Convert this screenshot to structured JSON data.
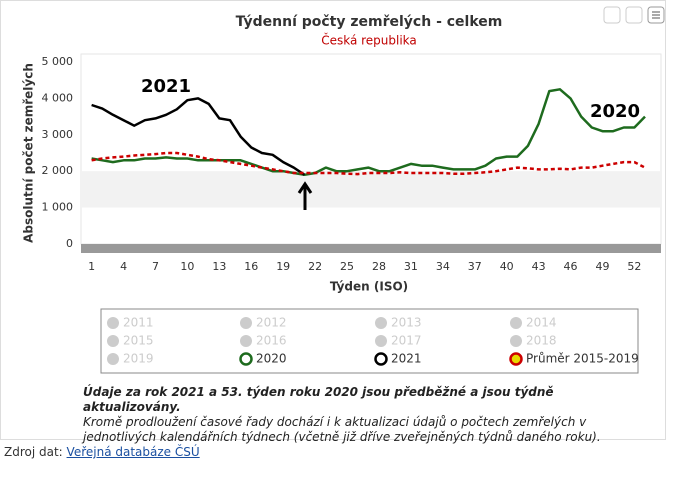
{
  "chart_data": {
    "type": "line",
    "title": "Týdenní počty zemřelých - celkem",
    "subtitle": "Česká republika",
    "x_label": "Týden (ISO)",
    "y_label": "Absolutní počet zemřelých",
    "x": [
      1,
      2,
      3,
      4,
      5,
      6,
      7,
      8,
      9,
      10,
      11,
      12,
      13,
      14,
      15,
      16,
      17,
      18,
      19,
      20,
      21,
      22,
      23,
      24,
      25,
      26,
      27,
      28,
      29,
      30,
      31,
      32,
      33,
      34,
      35,
      36,
      37,
      38,
      39,
      40,
      41,
      42,
      43,
      44,
      45,
      46,
      47,
      48,
      49,
      50,
      51,
      52,
      53
    ],
    "xlim": [
      0,
      54.5
    ],
    "xticks": [
      1,
      4,
      7,
      10,
      13,
      16,
      19,
      22,
      25,
      28,
      31,
      34,
      37,
      40,
      43,
      46,
      49,
      52
    ],
    "ylim": [
      0,
      5000
    ],
    "yticks": [
      0,
      {
        "value": 1000,
        "label": "1 000"
      },
      {
        "value": 2000,
        "label": "2 000"
      },
      {
        "value": 3000,
        "label": "3 000"
      },
      {
        "value": 4000,
        "label": "4 000"
      },
      {
        "value": 5000,
        "label": "5 000"
      }
    ],
    "plot_band": [
      1000,
      2000
    ],
    "grid": false,
    "hidden_series": [
      "2011",
      "2012",
      "2013",
      "2014",
      "2015",
      "2016",
      "2017",
      "2018",
      "2019"
    ],
    "series": [
      {
        "name": "2020",
        "color": "#1e6b1e",
        "values": [
          2350,
          2300,
          2250,
          2300,
          2300,
          2350,
          2350,
          2380,
          2350,
          2350,
          2300,
          2300,
          2300,
          2300,
          2300,
          2200,
          2100,
          2000,
          2000,
          1950,
          1900,
          1950,
          2100,
          2000,
          2000,
          2050,
          2100,
          2000,
          2000,
          2100,
          2200,
          2150,
          2150,
          2100,
          2050,
          2050,
          2050,
          2150,
          2350,
          2400,
          2400,
          2700,
          3300,
          4200,
          4250,
          4000,
          3500,
          3200,
          3100,
          3100,
          3200,
          3200,
          3500
        ]
      },
      {
        "name": "2021",
        "color": "#000000",
        "values": [
          3820,
          3720,
          3550,
          3400,
          3250,
          3400,
          3450,
          3550,
          3700,
          3950,
          4000,
          3850,
          3450,
          3400,
          2950,
          2650,
          2500,
          2450,
          2250,
          2100,
          1900,
          null,
          null,
          null,
          null,
          null,
          null,
          null,
          null,
          null,
          null,
          null,
          null,
          null,
          null,
          null,
          null,
          null,
          null,
          null,
          null,
          null,
          null,
          null,
          null,
          null,
          null,
          null,
          null,
          null,
          null,
          null,
          null
        ]
      },
      {
        "name": "Průměr 2015-2019",
        "color": "#cc0000",
        "dashed": true,
        "legend_fill": "#e8d800",
        "values": [
          2300,
          2350,
          2380,
          2400,
          2430,
          2450,
          2470,
          2500,
          2500,
          2450,
          2400,
          2330,
          2300,
          2250,
          2200,
          2150,
          2100,
          2050,
          2000,
          1950,
          1950,
          1950,
          1950,
          1950,
          1930,
          1920,
          1950,
          1950,
          1950,
          1970,
          1950,
          1950,
          1950,
          1950,
          1930,
          1930,
          1950,
          1970,
          2000,
          2050,
          2100,
          2080,
          2050,
          2050,
          2070,
          2050,
          2100,
          2100,
          2150,
          2200,
          2250,
          2250,
          2100
        ]
      }
    ],
    "annotations": [
      "2021",
      "2020"
    ]
  },
  "note": {
    "bold": "Údaje za rok 2021 a 53. týden roku 2020 jsou předběžné a jsou týdně aktualizovány.",
    "text": "Kromě prodloužení časové řady dochází i k aktualizaci údajů o počtech zemřelých v jednotlivých kalendářních týdnech (včetně již dříve zveřejněných týdnů daného roku)."
  },
  "source": {
    "label": "Zdroj dat:",
    "link": "Veřejná databáze ČSÚ"
  }
}
